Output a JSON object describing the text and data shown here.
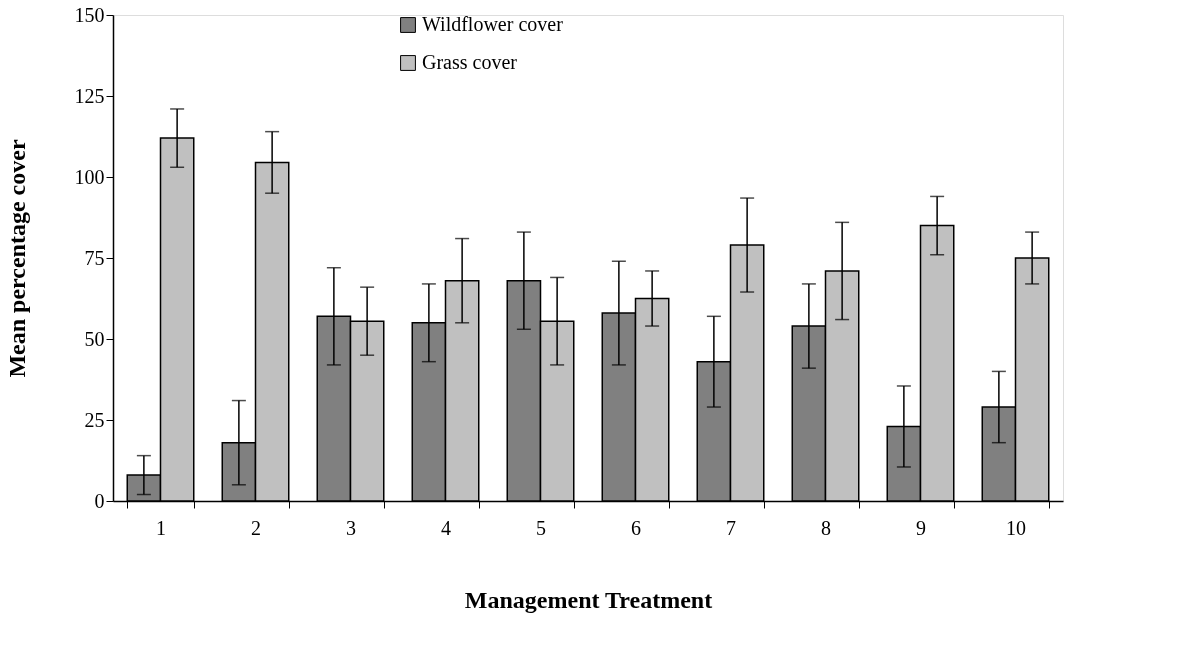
{
  "chart_data": {
    "type": "bar",
    "xlabel": "Management Treatment",
    "ylabel": "Mean percentage cover",
    "categories": [
      "1",
      "2",
      "3",
      "4",
      "5",
      "6",
      "7",
      "8",
      "9",
      "10"
    ],
    "series": [
      {
        "name": "Wildflower cover",
        "color": "#808080",
        "values": [
          8,
          18,
          57,
          55,
          68,
          58,
          43,
          54,
          23,
          29
        ],
        "errors": [
          6,
          13,
          15,
          12,
          15,
          16,
          14,
          13,
          12.5,
          11
        ]
      },
      {
        "name": "Grass cover",
        "color": "#c0c0c0",
        "values": [
          112,
          104.5,
          55.5,
          68,
          55.5,
          62.5,
          79,
          71,
          85,
          75
        ],
        "errors": [
          9,
          9.5,
          10.5,
          13,
          13.5,
          8.5,
          14.5,
          15,
          9,
          8
        ]
      }
    ],
    "ylim": [
      0,
      150
    ],
    "yticks": [
      0,
      25,
      50,
      75,
      100,
      125,
      150
    ],
    "grid": false,
    "legend": "top"
  }
}
